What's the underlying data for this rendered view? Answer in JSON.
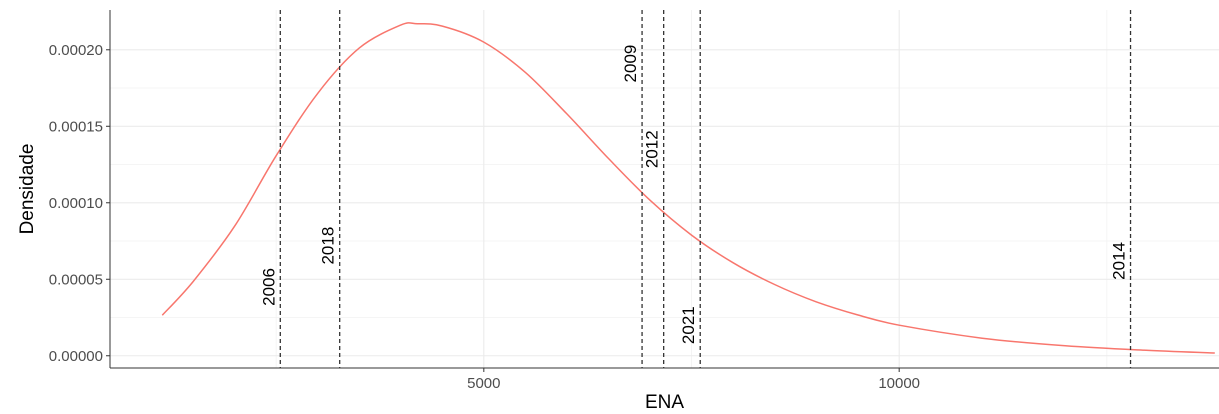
{
  "chart_data": {
    "type": "line",
    "title": "",
    "xlabel": "ENA",
    "ylabel": "Densidade",
    "xlim": [
      500,
      13850
    ],
    "ylim": [
      -8e-06,
      0.000226
    ],
    "grid": true,
    "x_ticks": [
      5000,
      10000
    ],
    "x_tick_labels": [
      "5000",
      "10000"
    ],
    "y_ticks": [
      0,
      5e-05,
      0.0001,
      0.00015,
      0.0002
    ],
    "y_tick_labels": [
      "0.00000",
      "0.00005",
      "0.00010",
      "0.00015",
      "0.00020"
    ],
    "series": [
      {
        "color": "#F8766D",
        "x": [
          1130,
          1500,
          2000,
          2500,
          3000,
          3500,
          4000,
          4200,
          4500,
          5000,
          5500,
          6000,
          6500,
          7000,
          7500,
          8000,
          8500,
          9000,
          9500,
          10000,
          11000,
          12000,
          13000,
          13800
        ],
        "y": [
          2.65e-05,
          4.85e-05,
          8.47e-05,
          0.0001307,
          0.0001715,
          0.0002011,
          0.0002161,
          0.000217,
          0.0002155,
          0.000205,
          0.0001852,
          0.0001581,
          0.000129,
          0.0001017,
          7.89e-05,
          6.08e-05,
          4.66e-05,
          3.53e-05,
          2.67e-05,
          2e-05,
          1.15e-05,
          6.5e-06,
          3.5e-06,
          1.8e-06
        ]
      }
    ],
    "vlines": [
      {
        "x": 2550,
        "label": "2006",
        "label_y": 4.5e-05
      },
      {
        "x": 3265,
        "label": "2018",
        "label_y": 7.2e-05
      },
      {
        "x": 6905,
        "label": "2009",
        "label_y": 0.000191
      },
      {
        "x": 7165,
        "label": "2012",
        "label_y": 0.000135
      },
      {
        "x": 7605,
        "label": "2021",
        "label_y": 2e-05
      },
      {
        "x": 12785,
        "label": "2014",
        "label_y": 6.2e-05
      }
    ]
  }
}
